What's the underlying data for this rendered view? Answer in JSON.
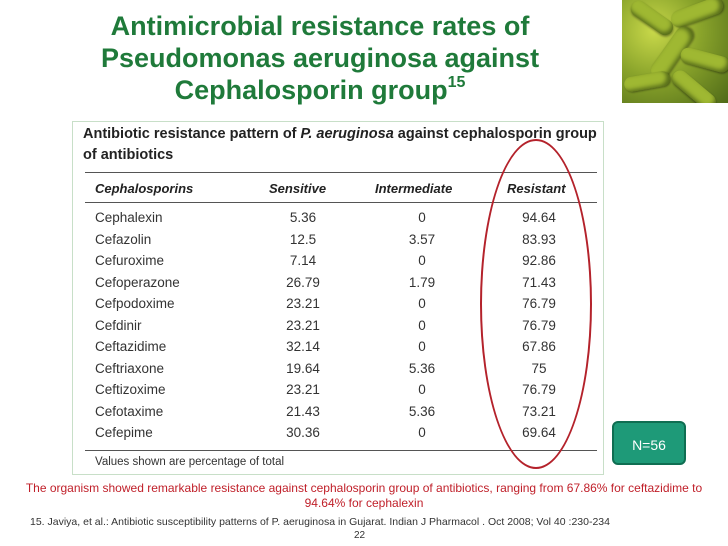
{
  "slide": {
    "title_main": "Antimicrobial resistance rates of Pseudomonas aeruginosa against Cephalosporin group",
    "title_ref": "15",
    "n_badge": "N=56",
    "summary": "The organism showed remarkable resistance against cephalosporin group of antibiotics, ranging from 67.86% for ceftazidime to 94.64% for cephalexin",
    "citation": "15. Javiya, et al.: Antibiotic susceptibility patterns of P. aeruginosa in Gujarat. Indian J Pharmacol . Oct 2008; Vol 40 :230-234",
    "page_number": "22"
  },
  "table": {
    "heading_part1": "Antibiotic resistance pattern of ",
    "heading_italic": "P. aeruginosa",
    "heading_part2": " against cephalosporin group of antibiotics",
    "headers": {
      "drug": "Cephalosporins",
      "sensitive": "Sensitive",
      "intermediate": "Intermediate",
      "resistant": "Resistant"
    },
    "rows": [
      {
        "drug": "Cephalexin",
        "sensitive": "5.36",
        "intermediate": "0",
        "resistant": "94.64"
      },
      {
        "drug": "Cefazolin",
        "sensitive": "12.5",
        "intermediate": "3.57",
        "resistant": "83.93"
      },
      {
        "drug": "Cefuroxime",
        "sensitive": "7.14",
        "intermediate": "0",
        "resistant": "92.86"
      },
      {
        "drug": "Cefoperazone",
        "sensitive": "26.79",
        "intermediate": "1.79",
        "resistant": "71.43"
      },
      {
        "drug": "Cefpodoxime",
        "sensitive": "23.21",
        "intermediate": "0",
        "resistant": "76.79"
      },
      {
        "drug": "Cefdinir",
        "sensitive": "23.21",
        "intermediate": "0",
        "resistant": "76.79"
      },
      {
        "drug": "Ceftazidime",
        "sensitive": "32.14",
        "intermediate": "0",
        "resistant": "67.86"
      },
      {
        "drug": "Ceftriaxone",
        "sensitive": "19.64",
        "intermediate": "5.36",
        "resistant": "75"
      },
      {
        "drug": "Ceftizoxime",
        "sensitive": "23.21",
        "intermediate": "0",
        "resistant": "76.79"
      },
      {
        "drug": "Cefotaxime",
        "sensitive": "21.43",
        "intermediate": "5.36",
        "resistant": "73.21"
      },
      {
        "drug": "Cefepime",
        "sensitive": "30.36",
        "intermediate": "0",
        "resistant": "69.64"
      }
    ],
    "note": "Values shown are percentage of total"
  },
  "colors": {
    "title": "#1f7a3a",
    "summary": "#c0202a",
    "badge": "#1e9a78",
    "highlight": "#b4222b"
  }
}
